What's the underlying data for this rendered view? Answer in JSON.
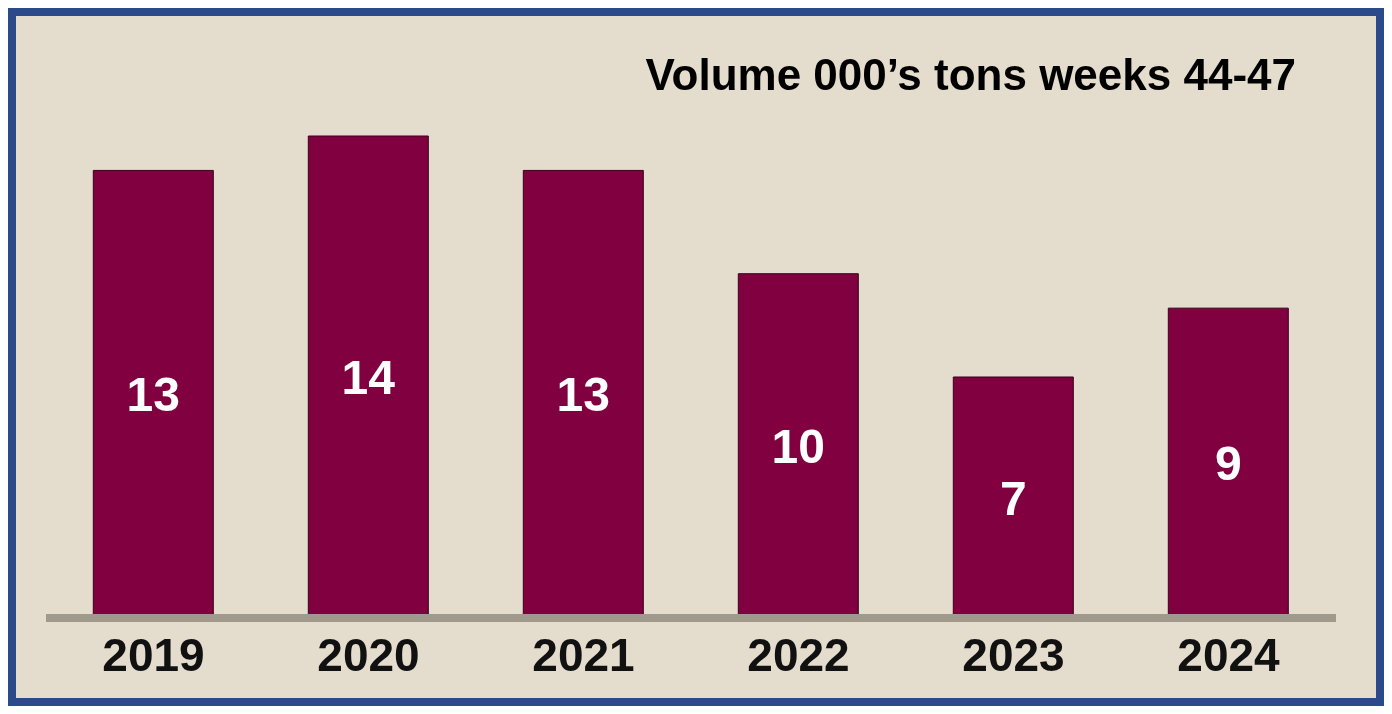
{
  "chart_data": {
    "type": "bar",
    "title": "Volume 000’s tons weeks 44-47",
    "categories": [
      "2019",
      "2020",
      "2021",
      "2022",
      "2023",
      "2024"
    ],
    "values": [
      13,
      14,
      13,
      10,
      7,
      9
    ],
    "color": "#800040",
    "data_labels": true
  }
}
